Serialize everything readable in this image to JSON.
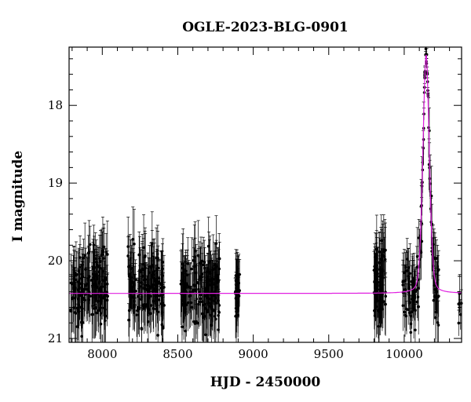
{
  "chart_data": {
    "type": "scatter",
    "title": "OGLE-2023-BLG-0901",
    "xlabel": "HJD - 2450000",
    "ylabel": "I magnitude",
    "xlim": [
      7780,
      10380
    ],
    "ylim": [
      21.05,
      17.25
    ],
    "y_inverted": true,
    "x_ticks": [
      8000,
      8500,
      9000,
      9500,
      10000
    ],
    "y_ticks": [
      18,
      19,
      20,
      21
    ],
    "grid": false,
    "legend": "none",
    "series": [
      {
        "kind": "observations",
        "color": "#000000",
        "seasons": [
          {
            "x_start": 7790,
            "x_end": 8040,
            "n": 150,
            "mag_mean": 20.35,
            "mag_spread": 0.5,
            "err": 0.35
          },
          {
            "x_start": 8170,
            "x_end": 8410,
            "n": 150,
            "mag_mean": 20.35,
            "mag_spread": 0.5,
            "err": 0.35
          },
          {
            "x_start": 8520,
            "x_end": 8780,
            "n": 160,
            "mag_mean": 20.35,
            "mag_spread": 0.5,
            "err": 0.35
          },
          {
            "x_start": 8880,
            "x_end": 8910,
            "n": 35,
            "mag_mean": 20.4,
            "mag_spread": 0.4,
            "err": 0.3
          },
          {
            "x_start": 9800,
            "x_end": 9880,
            "n": 70,
            "mag_mean": 20.3,
            "mag_spread": 0.5,
            "err": 0.35
          },
          {
            "x_start": 9990,
            "x_end": 10230,
            "n": 130,
            "mag_mean": 20.3,
            "mag_spread": 0.45,
            "err": 0.3,
            "follows_model": true
          },
          {
            "x_start": 10360,
            "x_end": 10380,
            "n": 6,
            "mag_mean": 20.6,
            "mag_spread": 0.2,
            "err": 0.2
          }
        ]
      },
      {
        "kind": "model",
        "color": "#e020e0",
        "baseline": 20.42,
        "peak_time": 10145,
        "peak_mag": 17.35,
        "timescale": 22
      }
    ]
  }
}
